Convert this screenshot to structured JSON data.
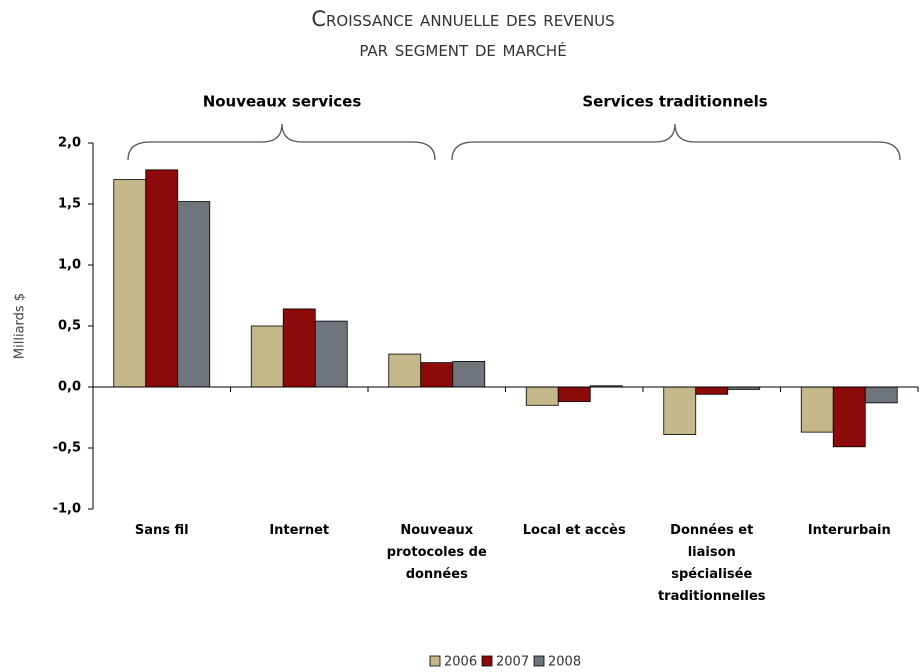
{
  "chart_data": {
    "type": "bar",
    "title": [
      "Croissance annuelle des revenus",
      "par segment de marché"
    ],
    "annotations": [
      "Nouveaux services",
      "Services traditionnels"
    ],
    "ylabel": "Milliards $",
    "categories": [
      "Sans fil",
      "Internet",
      "Nouveaux protocoles de données",
      "Local et accès",
      "Données et liaison spécialisée traditionnelles",
      "Interurbain"
    ],
    "series": [
      {
        "name": "2006",
        "color": "#c4b789",
        "values": [
          1.7,
          0.5,
          0.27,
          -0.15,
          -0.39,
          -0.37
        ]
      },
      {
        "name": "2007",
        "color": "#8c0a0a",
        "values": [
          1.78,
          0.64,
          0.2,
          -0.12,
          -0.06,
          -0.49
        ]
      },
      {
        "name": "2008",
        "color": "#6e757c",
        "values": [
          1.52,
          0.54,
          0.21,
          0.01,
          -0.02,
          -0.13
        ]
      }
    ],
    "ylim": [
      -1.0,
      2.0
    ],
    "yticks": [
      {
        "value": -1.0,
        "label": "-1,0"
      },
      {
        "value": -0.5,
        "label": "-0,5"
      },
      {
        "value": 0,
        "label": "0,0"
      },
      {
        "value": 0.5,
        "label": "0,5"
      },
      {
        "value": 1.0,
        "label": "1,0"
      },
      {
        "value": 1.5,
        "label": "1,5"
      },
      {
        "value": 2.0,
        "label": "2,0"
      }
    ],
    "grid": false,
    "legend": "bottom"
  }
}
